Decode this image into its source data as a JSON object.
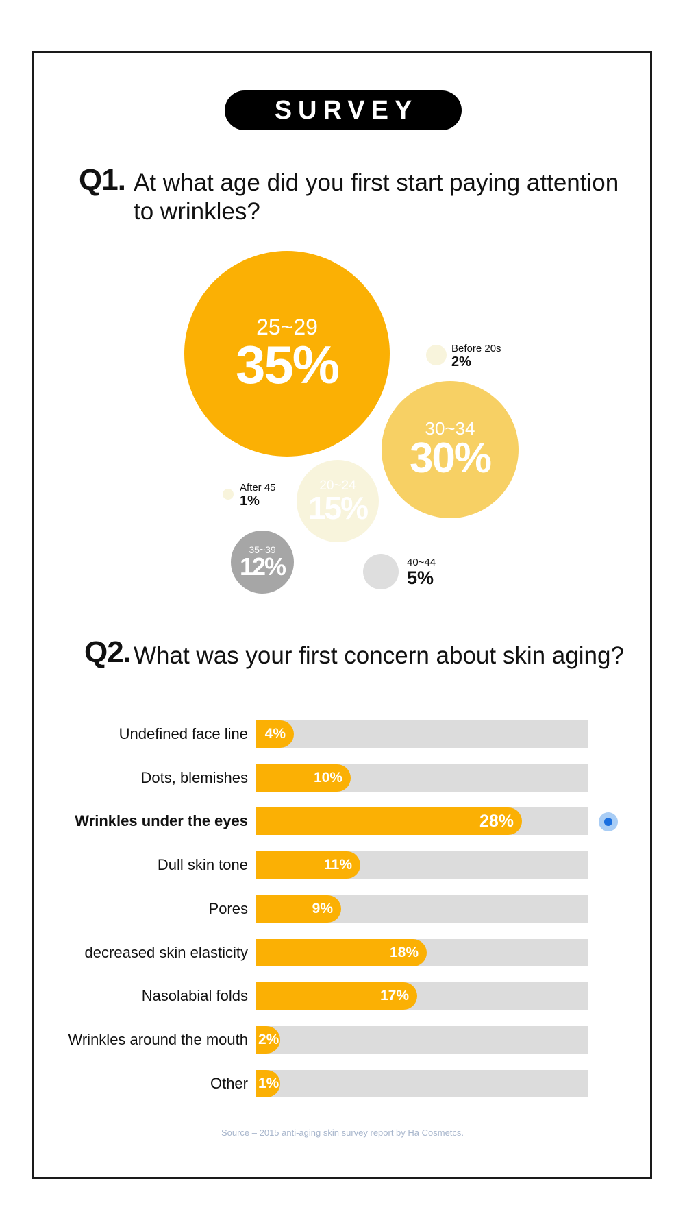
{
  "badge": "SURVEY",
  "q1": {
    "number": "Q1.",
    "text_line1": "At what age did you first start paying attention",
    "text_line2": "to wrinkles?"
  },
  "q2": {
    "number": "Q2.",
    "text": "What was your first concern about skin aging?"
  },
  "colors": {
    "accent": "#fbb004",
    "light_yellow": "#f7d064",
    "pale_cream": "#f8f4dc",
    "gray_dark": "#a6a6a6",
    "gray_light": "#dedede",
    "track": "#dcdcdc"
  },
  "chart_data": [
    {
      "type": "bubble",
      "categories": [
        "25~29",
        "30~34",
        "20~24",
        "35~39",
        "40~44",
        "Before 20s",
        "After 45"
      ],
      "values": [
        35,
        30,
        15,
        12,
        5,
        2,
        1
      ],
      "labels": [
        "35%",
        "30%",
        "15%",
        "12%",
        "5%",
        "2%",
        "1%"
      ],
      "unit": "%"
    },
    {
      "type": "bar",
      "orientation": "horizontal",
      "categories": [
        "Undefined face line",
        "Dots, blemishes",
        "Wrinkles under the eyes",
        "Dull skin tone",
        "Pores",
        "decreased skin elasticity",
        "Nasolabial folds",
        "Wrinkles around the mouth",
        "Other"
      ],
      "values": [
        4,
        10,
        28,
        11,
        9,
        18,
        17,
        2,
        1
      ],
      "labels": [
        "4%",
        "10%",
        "28%",
        "11%",
        "9%",
        "18%",
        "17%",
        "2%",
        "1%"
      ],
      "highlighted": "Wrinkles under the eyes",
      "unit": "%"
    }
  ],
  "source": "Source – 2015 anti-aging skin survey report by Ha Cosmetcs."
}
